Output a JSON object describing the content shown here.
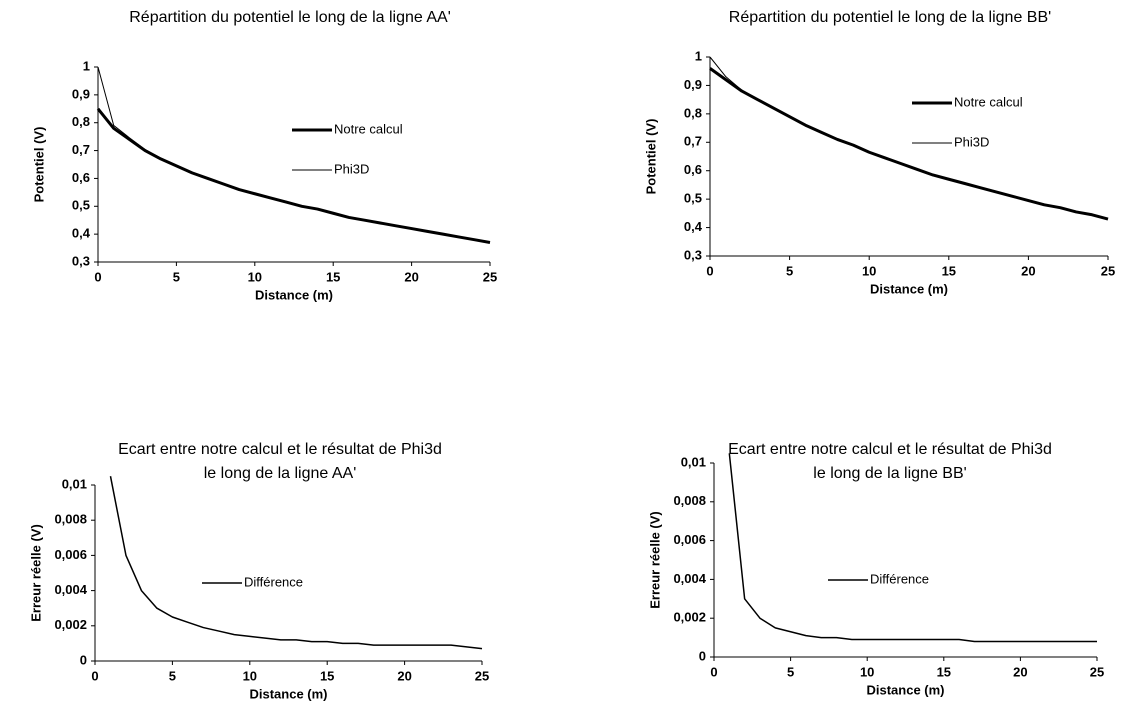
{
  "chart_data": [
    {
      "type": "line",
      "title": [
        "Répartition du potentiel le long de la ligne AA'"
      ],
      "x_label": "Distance (m)",
      "y_label": "Potentiel (V)",
      "x": [
        0,
        1,
        2,
        3,
        4,
        5,
        6,
        7,
        8,
        9,
        10,
        11,
        12,
        13,
        14,
        15,
        16,
        17,
        18,
        19,
        20,
        21,
        22,
        23,
        24,
        25
      ],
      "series": [
        {
          "name": "Notre calcul",
          "color": "#000000",
          "values": [
            0.85,
            0.78,
            0.74,
            0.7,
            0.67,
            0.645,
            0.62,
            0.6,
            0.58,
            0.56,
            0.545,
            0.53,
            0.515,
            0.5,
            0.49,
            0.475,
            0.46,
            0.45,
            0.44,
            0.43,
            0.42,
            0.41,
            0.4,
            0.39,
            0.38,
            0.37
          ]
        },
        {
          "name": "Phi3D",
          "color": "#000000",
          "values": [
            1.0,
            0.7905,
            0.746,
            0.704,
            0.673,
            0.6475,
            0.6222,
            0.6019,
            0.5817,
            0.5615,
            0.5464,
            0.5313,
            0.5162,
            0.5012,
            0.4911,
            0.4761,
            0.461,
            0.451,
            0.4409,
            0.4309,
            0.4209,
            0.4109,
            0.4009,
            0.3909,
            0.3808,
            0.3707
          ]
        }
      ],
      "xlim": [
        0,
        25
      ],
      "xticks": [
        0,
        5,
        10,
        15,
        20,
        25
      ],
      "ylim": [
        0.3,
        1
      ],
      "yticks": [
        {
          "value": 0.3,
          "label": "0,3"
        },
        {
          "value": 0.4,
          "label": "0,4"
        },
        {
          "value": 0.5,
          "label": "0,5"
        },
        {
          "value": 0.6,
          "label": "0,6"
        },
        {
          "value": 0.7,
          "label": "0,7"
        },
        {
          "value": 0.8,
          "label": "0,8"
        },
        {
          "value": 0.9,
          "label": "0,9"
        },
        1
      ],
      "grid": false
    },
    {
      "type": "line",
      "title": [
        "Répartition du potentiel le long de la ligne BB'"
      ],
      "x_label": "Distance (m)",
      "y_label": "Potentiel (V)",
      "x": [
        0,
        1,
        2,
        3,
        4,
        5,
        6,
        7,
        8,
        9,
        10,
        11,
        12,
        13,
        14,
        15,
        16,
        17,
        18,
        19,
        20,
        21,
        22,
        23,
        24,
        25
      ],
      "series": [
        {
          "name": "Notre calcul",
          "color": "#000000",
          "values": [
            0.96,
            0.92,
            0.88,
            0.85,
            0.82,
            0.79,
            0.76,
            0.735,
            0.71,
            0.69,
            0.665,
            0.645,
            0.625,
            0.605,
            0.585,
            0.57,
            0.555,
            0.54,
            0.525,
            0.51,
            0.495,
            0.48,
            0.47,
            0.455,
            0.445,
            0.43
          ]
        },
        {
          "name": "Phi3D",
          "color": "#000000",
          "values": [
            1.0,
            0.9305,
            0.883,
            0.852,
            0.8215,
            0.7913,
            0.7611,
            0.736,
            0.711,
            0.6909,
            0.6659,
            0.6459,
            0.6259,
            0.6059,
            0.5859,
            0.5709,
            0.5559,
            0.5408,
            0.5258,
            0.5108,
            0.4958,
            0.4808,
            0.4708,
            0.4558,
            0.4458,
            0.4308
          ]
        }
      ],
      "xlim": [
        0,
        25
      ],
      "xticks": [
        0,
        5,
        10,
        15,
        20,
        25
      ],
      "ylim": [
        0.3,
        1
      ],
      "yticks": [
        {
          "value": 0.3,
          "label": "0,3"
        },
        {
          "value": 0.4,
          "label": "0,4"
        },
        {
          "value": 0.5,
          "label": "0,5"
        },
        {
          "value": 0.6,
          "label": "0,6"
        },
        {
          "value": 0.7,
          "label": "0,7"
        },
        {
          "value": 0.8,
          "label": "0,8"
        },
        {
          "value": 0.9,
          "label": "0,9"
        },
        1
      ],
      "grid": false
    },
    {
      "type": "line",
      "title": [
        "Ecart entre notre calcul et le résultat de Phi3d",
        "le long de la ligne AA'"
      ],
      "x_label": "Distance (m)",
      "y_label": "Erreur réelle (V)",
      "x": [
        1,
        2,
        3,
        4,
        5,
        6,
        7,
        8,
        9,
        10,
        11,
        12,
        13,
        14,
        15,
        16,
        17,
        18,
        19,
        20,
        21,
        22,
        23,
        24,
        25
      ],
      "series": [
        {
          "name": "Différence",
          "color": "#000000",
          "values": [
            0.0105,
            0.006,
            0.004,
            0.003,
            0.0025,
            0.0022,
            0.0019,
            0.0017,
            0.0015,
            0.0014,
            0.0013,
            0.0012,
            0.0012,
            0.0011,
            0.0011,
            0.001,
            0.001,
            0.0009,
            0.0009,
            0.0009,
            0.0009,
            0.0009,
            0.0009,
            0.0008,
            0.0007
          ]
        }
      ],
      "xlim": [
        0,
        25
      ],
      "xticks": [
        0,
        5,
        10,
        15,
        20,
        25
      ],
      "ylim": [
        0,
        0.01
      ],
      "yticks": [
        0,
        {
          "value": 0.002,
          "label": "0,002"
        },
        {
          "value": 0.004,
          "label": "0,004"
        },
        {
          "value": 0.006,
          "label": "0,006"
        },
        {
          "value": 0.008,
          "label": "0,008"
        },
        {
          "value": 0.01,
          "label": "0,01"
        }
      ],
      "grid": false
    },
    {
      "type": "line",
      "title": [
        "Ecart entre notre calcul et le résultat de Phi3d",
        "le long de la ligne BB'"
      ],
      "x_label": "Distance (m)",
      "y_label": "Erreur réelle (V)",
      "x": [
        1,
        2,
        3,
        4,
        5,
        6,
        7,
        8,
        9,
        10,
        11,
        12,
        13,
        14,
        15,
        16,
        17,
        18,
        19,
        20,
        21,
        22,
        23,
        24,
        25
      ],
      "series": [
        {
          "name": "Différence",
          "color": "#000000",
          "values": [
            0.0105,
            0.003,
            0.002,
            0.0015,
            0.0013,
            0.0011,
            0.001,
            0.001,
            0.0009,
            0.0009,
            0.0009,
            0.0009,
            0.0009,
            0.0009,
            0.0009,
            0.0009,
            0.0008,
            0.0008,
            0.0008,
            0.0008,
            0.0008,
            0.0008,
            0.0008,
            0.0008,
            0.0008
          ]
        }
      ],
      "xlim": [
        0,
        25
      ],
      "xticks": [
        0,
        5,
        10,
        15,
        20,
        25
      ],
      "ylim": [
        0,
        0.01
      ],
      "yticks": [
        0,
        {
          "value": 0.002,
          "label": "0,002"
        },
        {
          "value": 0.004,
          "label": "0,004"
        },
        {
          "value": 0.006,
          "label": "0,006"
        },
        {
          "value": 0.008,
          "label": "0,008"
        },
        {
          "value": 0.01,
          "label": "0,01"
        }
      ],
      "grid": false
    }
  ]
}
